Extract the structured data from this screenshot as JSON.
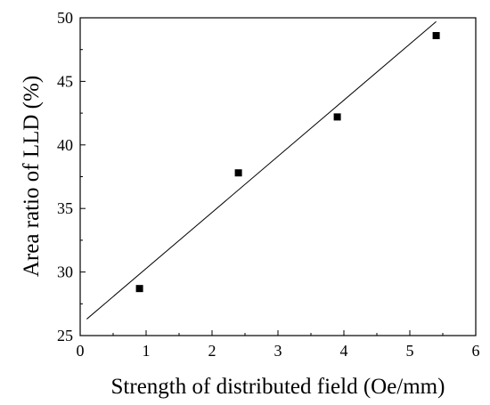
{
  "chart_data": {
    "type": "scatter",
    "title": "",
    "xlabel": "Strength of distributed field (Oe/mm)",
    "ylabel": "Area ratio of LLD (%)",
    "xlim": [
      0,
      6
    ],
    "ylim": [
      25,
      50
    ],
    "xticks": [
      0,
      1,
      2,
      3,
      4,
      5,
      6
    ],
    "yticks": [
      25,
      30,
      35,
      40,
      45,
      50
    ],
    "xtick_labels": [
      "0",
      "1",
      "2",
      "3",
      "4",
      "5",
      "6"
    ],
    "ytick_labels": [
      "25",
      "30",
      "35",
      "40",
      "45",
      "50"
    ],
    "grid": false,
    "legend": "none",
    "series": [
      {
        "marker": "square",
        "color": "#000000",
        "points": [
          {
            "x": 0.9,
            "y": 28.7
          },
          {
            "x": 2.4,
            "y": 37.8
          },
          {
            "x": 3.9,
            "y": 42.2
          },
          {
            "x": 5.4,
            "y": 48.6
          }
        ]
      }
    ],
    "fit_line": {
      "color": "#000000",
      "x": [
        0.1,
        5.4
      ],
      "y": [
        26.3,
        49.7
      ]
    }
  }
}
